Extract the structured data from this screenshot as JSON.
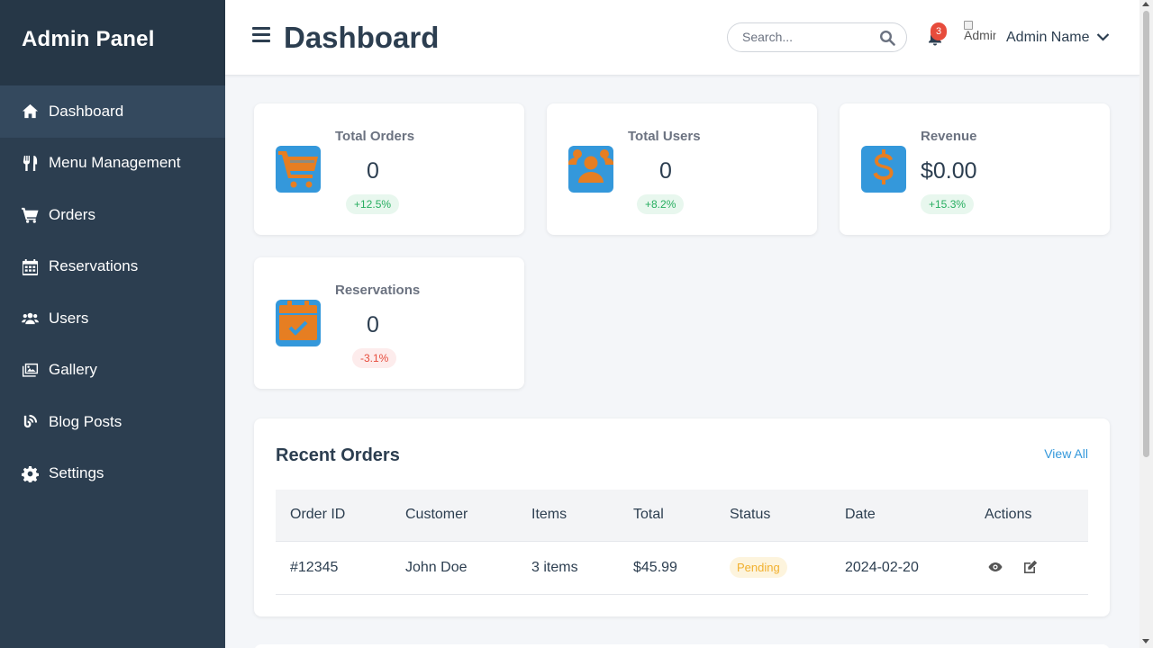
{
  "sidebar": {
    "brand": "Admin Panel",
    "items": [
      {
        "label": "Dashboard",
        "icon": "home-icon",
        "active": true
      },
      {
        "label": "Menu Management",
        "icon": "utensils-icon"
      },
      {
        "label": "Orders",
        "icon": "cart-icon"
      },
      {
        "label": "Reservations",
        "icon": "calendar-icon"
      },
      {
        "label": "Users",
        "icon": "users-icon"
      },
      {
        "label": "Gallery",
        "icon": "images-icon"
      },
      {
        "label": "Blog Posts",
        "icon": "blog-icon"
      },
      {
        "label": "Settings",
        "icon": "gear-icon"
      }
    ]
  },
  "header": {
    "title": "Dashboard",
    "search_placeholder": "Search...",
    "notification_count": "3",
    "avatar_alt": "Admin",
    "user_name": "Admin Name"
  },
  "stats": [
    {
      "label": "Total Orders",
      "value": "0",
      "change": "+12.5%",
      "trend": "up",
      "icon": "cart-icon"
    },
    {
      "label": "Total Users",
      "value": "0",
      "change": "+8.2%",
      "trend": "up",
      "icon": "users-icon"
    },
    {
      "label": "Revenue",
      "value": "$0.00",
      "change": "+15.3%",
      "trend": "up",
      "icon": "dollar-icon"
    },
    {
      "label": "Reservations",
      "value": "0",
      "change": "-3.1%",
      "trend": "down",
      "icon": "calendar-check-icon"
    }
  ],
  "recent_orders": {
    "title": "Recent Orders",
    "view_all": "View All",
    "columns": [
      "Order ID",
      "Customer",
      "Items",
      "Total",
      "Status",
      "Date",
      "Actions"
    ],
    "rows": [
      {
        "id": "#12345",
        "customer": "John Doe",
        "items": "3 items",
        "total": "$45.99",
        "status": "Pending",
        "date": "2024-02-20",
        "actions": [
          "eye-icon",
          "edit-icon"
        ]
      }
    ]
  },
  "colors": {
    "sidebar": "#2c3e50",
    "accent": "#3498db",
    "icon_orange": "#e67e22",
    "positive": "#27ae60",
    "negative": "#e74c3c",
    "pending": "#f1b02e"
  }
}
